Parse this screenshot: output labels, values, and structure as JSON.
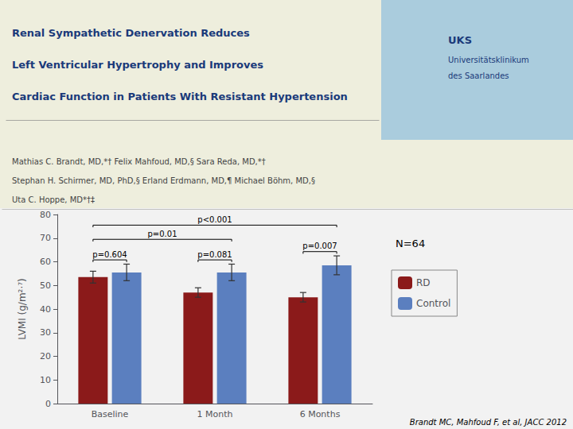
{
  "chart_data": {
    "type": "bar",
    "title": "Renal Sympathetic Denervation Reduces\nLeft Ventricular Hypertrophy and Improves\nCardiac Function in Patients With Resistant Hypertension",
    "subtitle": "Mathias C. Brandt, MD,*† Felix Mahfoud, MD,§ Sara Reda, MD,*†\nStephan H. Schirmer, MD, PhD,§ Erland Erdmann, MD,¶ Michael Böhm, MD,§\nUta C. Hoppe, MD*†‡",
    "logo": [
      "UKS",
      "Universitätsklinikum",
      "des Saarlandes"
    ],
    "categories": [
      "Baseline",
      "1 Month",
      "6 Months"
    ],
    "series": [
      {
        "name": "RD",
        "color": "#8B1A1A",
        "values": [
          53.5,
          47.0,
          45.0
        ],
        "errors": [
          2.5,
          2.0,
          2.0
        ]
      },
      {
        "name": "Control",
        "color": "#5B7FBF",
        "values": [
          55.5,
          55.5,
          58.5
        ],
        "errors": [
          3.5,
          3.5,
          4.0
        ]
      }
    ],
    "ylabel": "LVMI (g/m²·⁷)",
    "ylim": [
      0,
      80
    ],
    "yticks": [
      0,
      10,
      20,
      30,
      40,
      50,
      60,
      70,
      80
    ],
    "grid": false,
    "legend": "right",
    "comparisons": [
      {
        "text": "p=0.604",
        "from": [
          "Baseline",
          "RD"
        ],
        "to": [
          "Baseline",
          "Control"
        ]
      },
      {
        "text": "p=0.081",
        "from": [
          "1 Month",
          "RD"
        ],
        "to": [
          "1 Month",
          "Control"
        ]
      },
      {
        "text": "p=0.007",
        "from": [
          "6 Months",
          "RD"
        ],
        "to": [
          "6 Months",
          "Control"
        ]
      },
      {
        "text": "p=0.01",
        "from": [
          "Baseline",
          "RD"
        ],
        "to": [
          "1 Month",
          "Control"
        ]
      },
      {
        "text": "p<0.001",
        "from": [
          "Baseline",
          "RD"
        ],
        "to": [
          "6 Months",
          "Control"
        ]
      }
    ],
    "annotations": [
      "N=64"
    ],
    "source": "Brandt MC, Mahfoud F, et al, JACC 2012"
  }
}
